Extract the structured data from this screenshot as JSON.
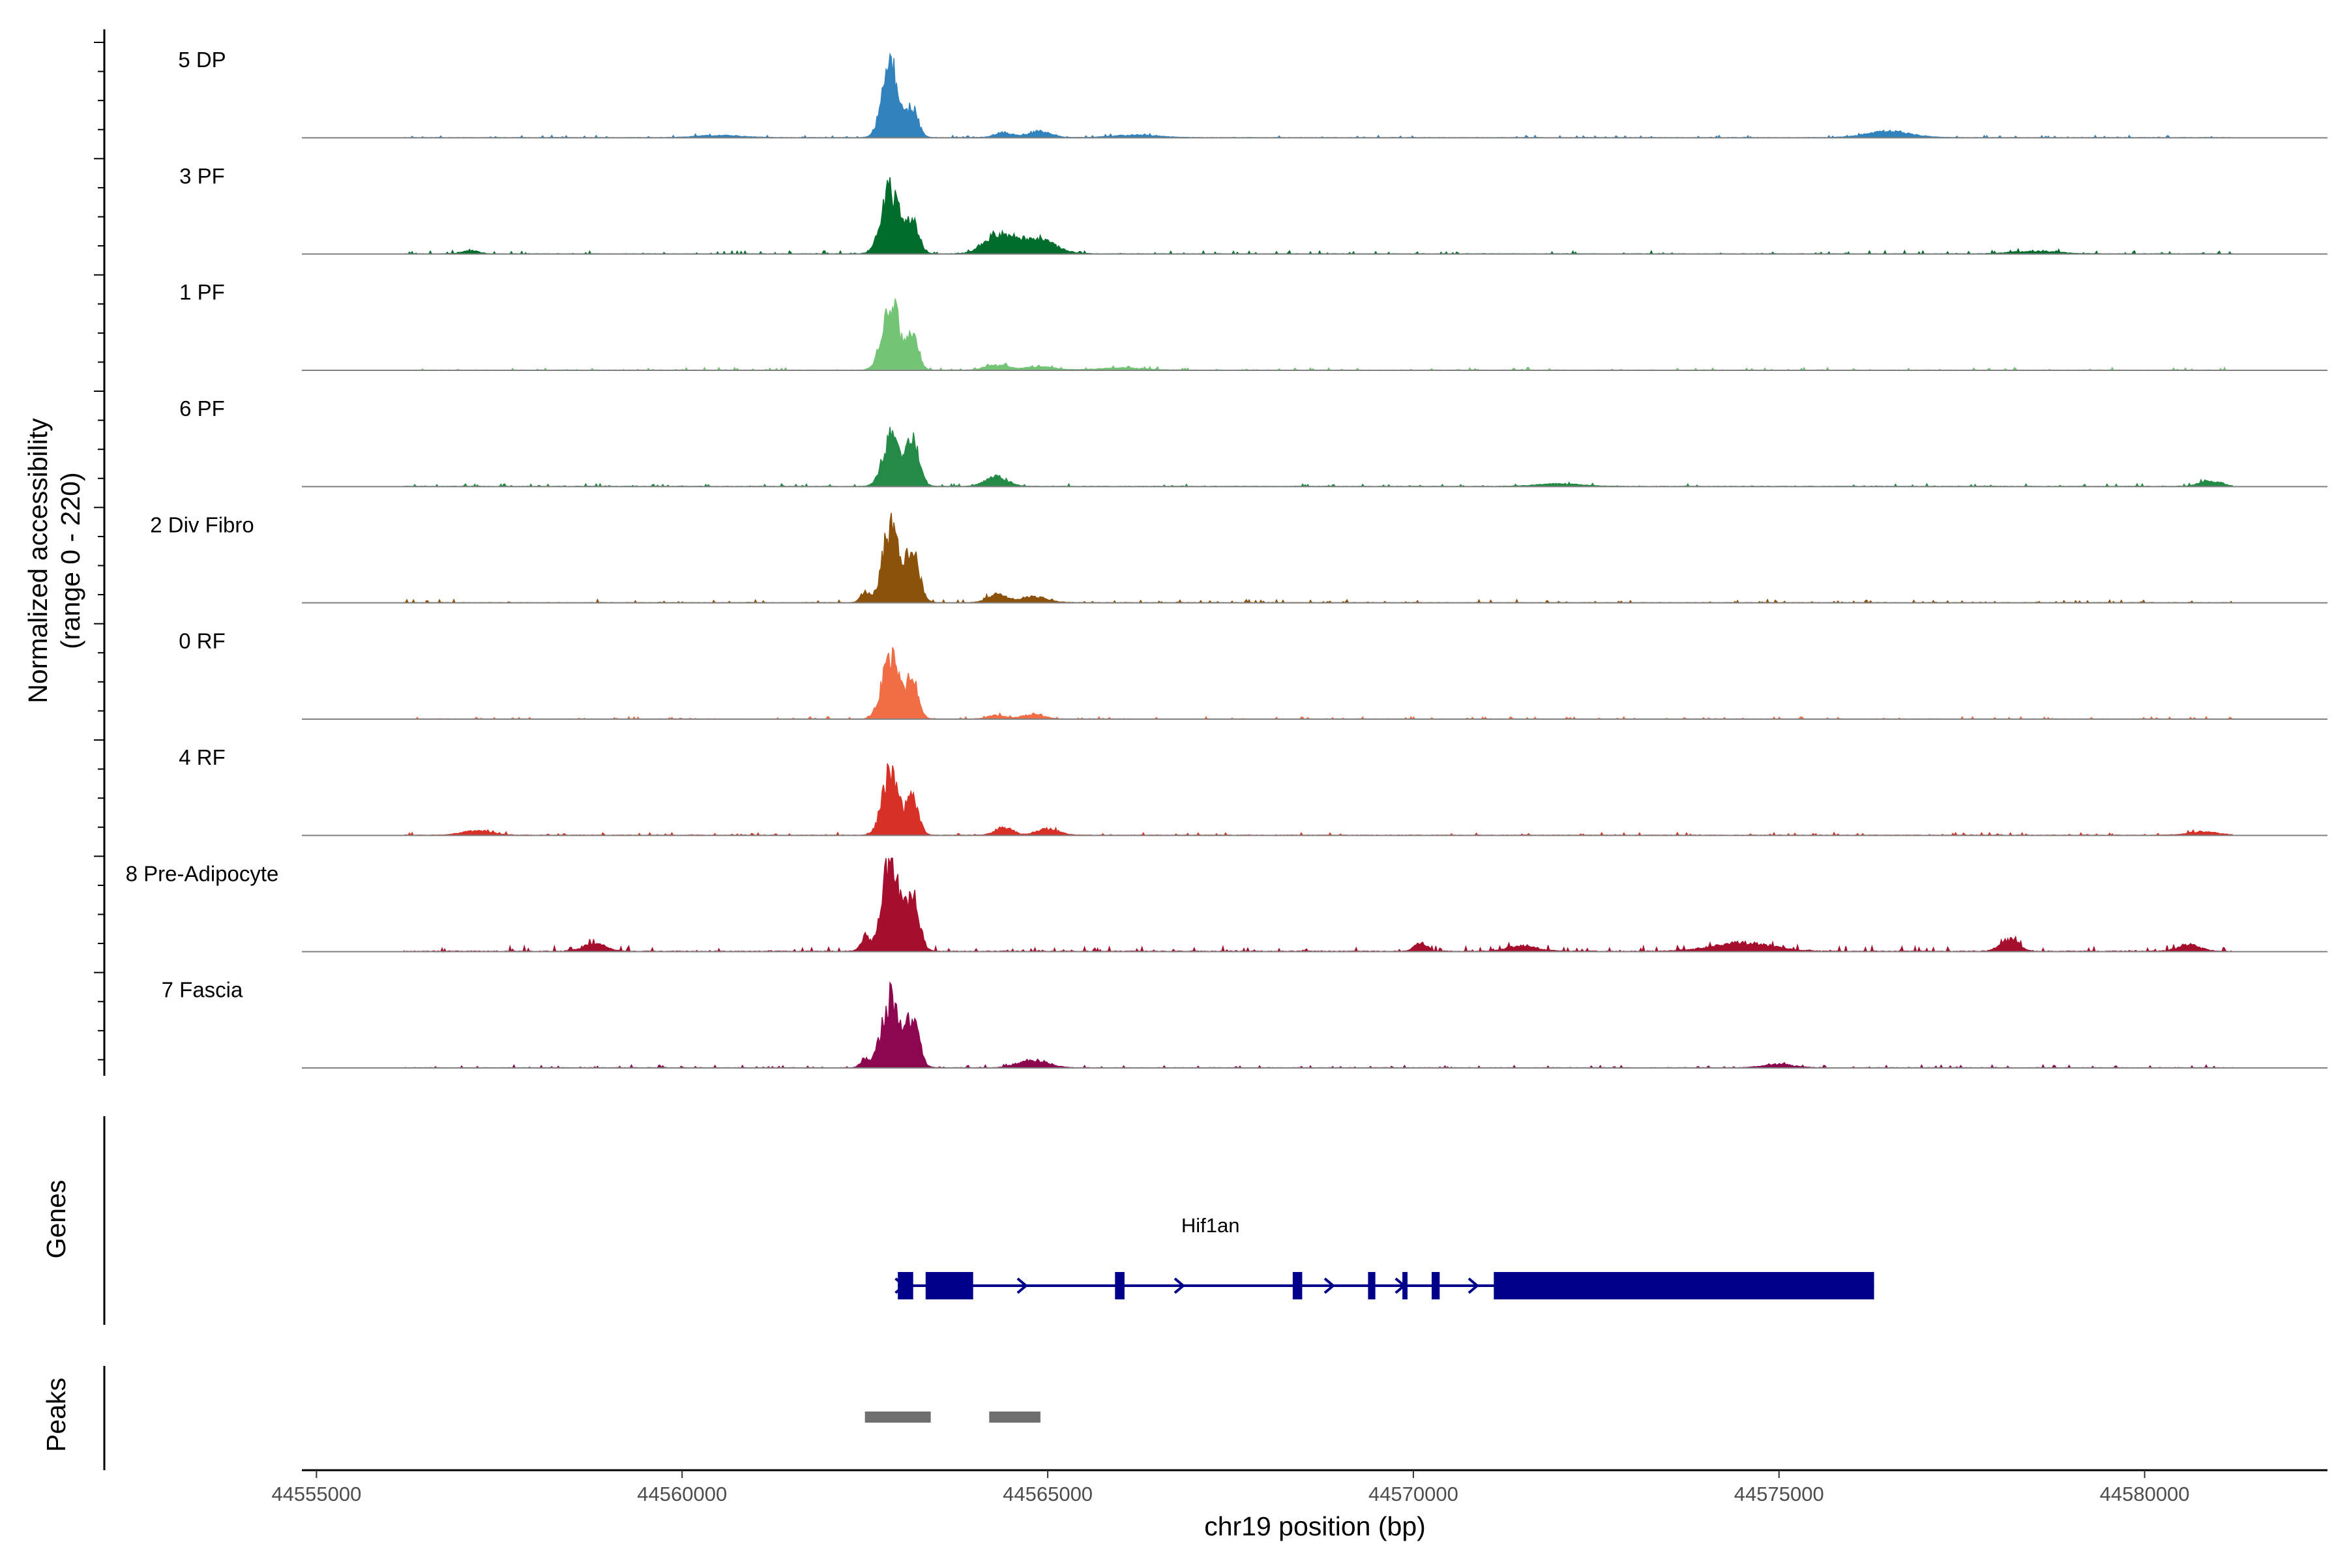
{
  "chart_data": {
    "type": "area",
    "title": "",
    "y_axis_title": "Normalized accessibility",
    "y_axis_subtitle": "(range 0 - 220)",
    "y_range": [
      0,
      220
    ],
    "x_label": "chr19 position (bp)",
    "xlim": [
      44554800,
      44582500
    ],
    "x_ticks": [
      44555000,
      44560000,
      44565000,
      44570000,
      44575000,
      44580000
    ],
    "x_tick_labels": [
      "44555000",
      "44560000",
      "44565000",
      "44570000",
      "44575000",
      "44580000"
    ],
    "data_range": [
      44556200,
      44581200
    ],
    "tracks": [
      {
        "name": "5 DP",
        "color": "#3182BD",
        "peaks": [
          [
            44562850,
            170,
            110
          ],
          [
            44563150,
            65,
            80
          ],
          [
            44564400,
            12,
            120
          ],
          [
            44564900,
            15,
            150
          ],
          [
            44576500,
            14,
            300
          ],
          [
            44566200,
            6,
            300
          ],
          [
            44560500,
            5,
            300
          ]
        ],
        "noise": 0.025
      },
      {
        "name": "3 PF",
        "color": "#006D2C",
        "peaks": [
          [
            44562850,
            155,
            120
          ],
          [
            44563150,
            70,
            90
          ],
          [
            44564300,
            40,
            180
          ],
          [
            44564800,
            38,
            260
          ],
          [
            44557100,
            8,
            100
          ],
          [
            44578500,
            6,
            300
          ]
        ],
        "noise": 0.035
      },
      {
        "name": "1 PF",
        "color": "#74C476",
        "peaks": [
          [
            44562850,
            170,
            110
          ],
          [
            44563150,
            80,
            80
          ],
          [
            44564300,
            12,
            150
          ],
          [
            44564900,
            8,
            200
          ],
          [
            44566000,
            5,
            300
          ]
        ],
        "noise": 0.03
      },
      {
        "name": "6 PF",
        "color": "#238B45",
        "peaks": [
          [
            44562850,
            115,
            110
          ],
          [
            44563150,
            105,
            90
          ],
          [
            44564300,
            22,
            150
          ],
          [
            44580900,
            12,
            150
          ],
          [
            44572000,
            6,
            300
          ]
        ],
        "noise": 0.03
      },
      {
        "name": "2 Div Fibro",
        "color": "#8C510A",
        "peaks": [
          [
            44562850,
            170,
            110
          ],
          [
            44563150,
            125,
            90
          ],
          [
            44562500,
            25,
            60
          ],
          [
            44564300,
            20,
            120
          ],
          [
            44564800,
            14,
            180
          ]
        ],
        "noise": 0.035
      },
      {
        "name": "0 RF",
        "color": "#F16D45",
        "peaks": [
          [
            44562850,
            155,
            110
          ],
          [
            44563150,
            95,
            80
          ],
          [
            44564300,
            8,
            120
          ],
          [
            44564800,
            10,
            150
          ]
        ],
        "noise": 0.025
      },
      {
        "name": "4 RF",
        "color": "#D73027",
        "peaks": [
          [
            44562850,
            150,
            110
          ],
          [
            44563150,
            90,
            80
          ],
          [
            44564400,
            18,
            120
          ],
          [
            44565000,
            15,
            150
          ],
          [
            44557200,
            10,
            200
          ],
          [
            44580800,
            8,
            200
          ]
        ],
        "noise": 0.03
      },
      {
        "name": "8 Pre-Adipocyte",
        "color": "#A50F2D",
        "peaks": [
          [
            44562850,
            220,
            110
          ],
          [
            44563150,
            125,
            90
          ],
          [
            44562500,
            35,
            60
          ],
          [
            44558800,
            18,
            150
          ],
          [
            44570100,
            22,
            80
          ],
          [
            44574500,
            20,
            400
          ],
          [
            44578150,
            28,
            120
          ],
          [
            44580600,
            15,
            150
          ],
          [
            44571500,
            12,
            200
          ]
        ],
        "noise": 0.06
      },
      {
        "name": "7 Fascia",
        "color": "#8C0650",
        "peaks": [
          [
            44562850,
            160,
            120
          ],
          [
            44563150,
            110,
            90
          ],
          [
            44562500,
            20,
            60
          ],
          [
            44564800,
            18,
            200
          ],
          [
            44575000,
            8,
            200
          ]
        ],
        "noise": 0.03
      }
    ],
    "genes_label": "Genes",
    "gene": {
      "name": "Hif1an",
      "strand": "+",
      "color": "#00008B",
      "start": 44562950,
      "end": 44576300,
      "exons": [
        [
          44562950,
          44563160
        ],
        [
          44563330,
          44563980
        ],
        [
          44565920,
          44566050
        ],
        [
          44568350,
          44568480
        ],
        [
          44569380,
          44569480
        ],
        [
          44569850,
          44569920
        ],
        [
          44570250,
          44570360
        ],
        [
          44571100,
          44576300
        ]
      ],
      "arrows": [
        44562980,
        44564650,
        44566800,
        44568850,
        44569820,
        44570820
      ]
    },
    "peaks_label": "Peaks",
    "peaks": [
      [
        44562500,
        44563400
      ],
      [
        44564200,
        44564900
      ]
    ],
    "peak_color": "#6E6E6E"
  }
}
